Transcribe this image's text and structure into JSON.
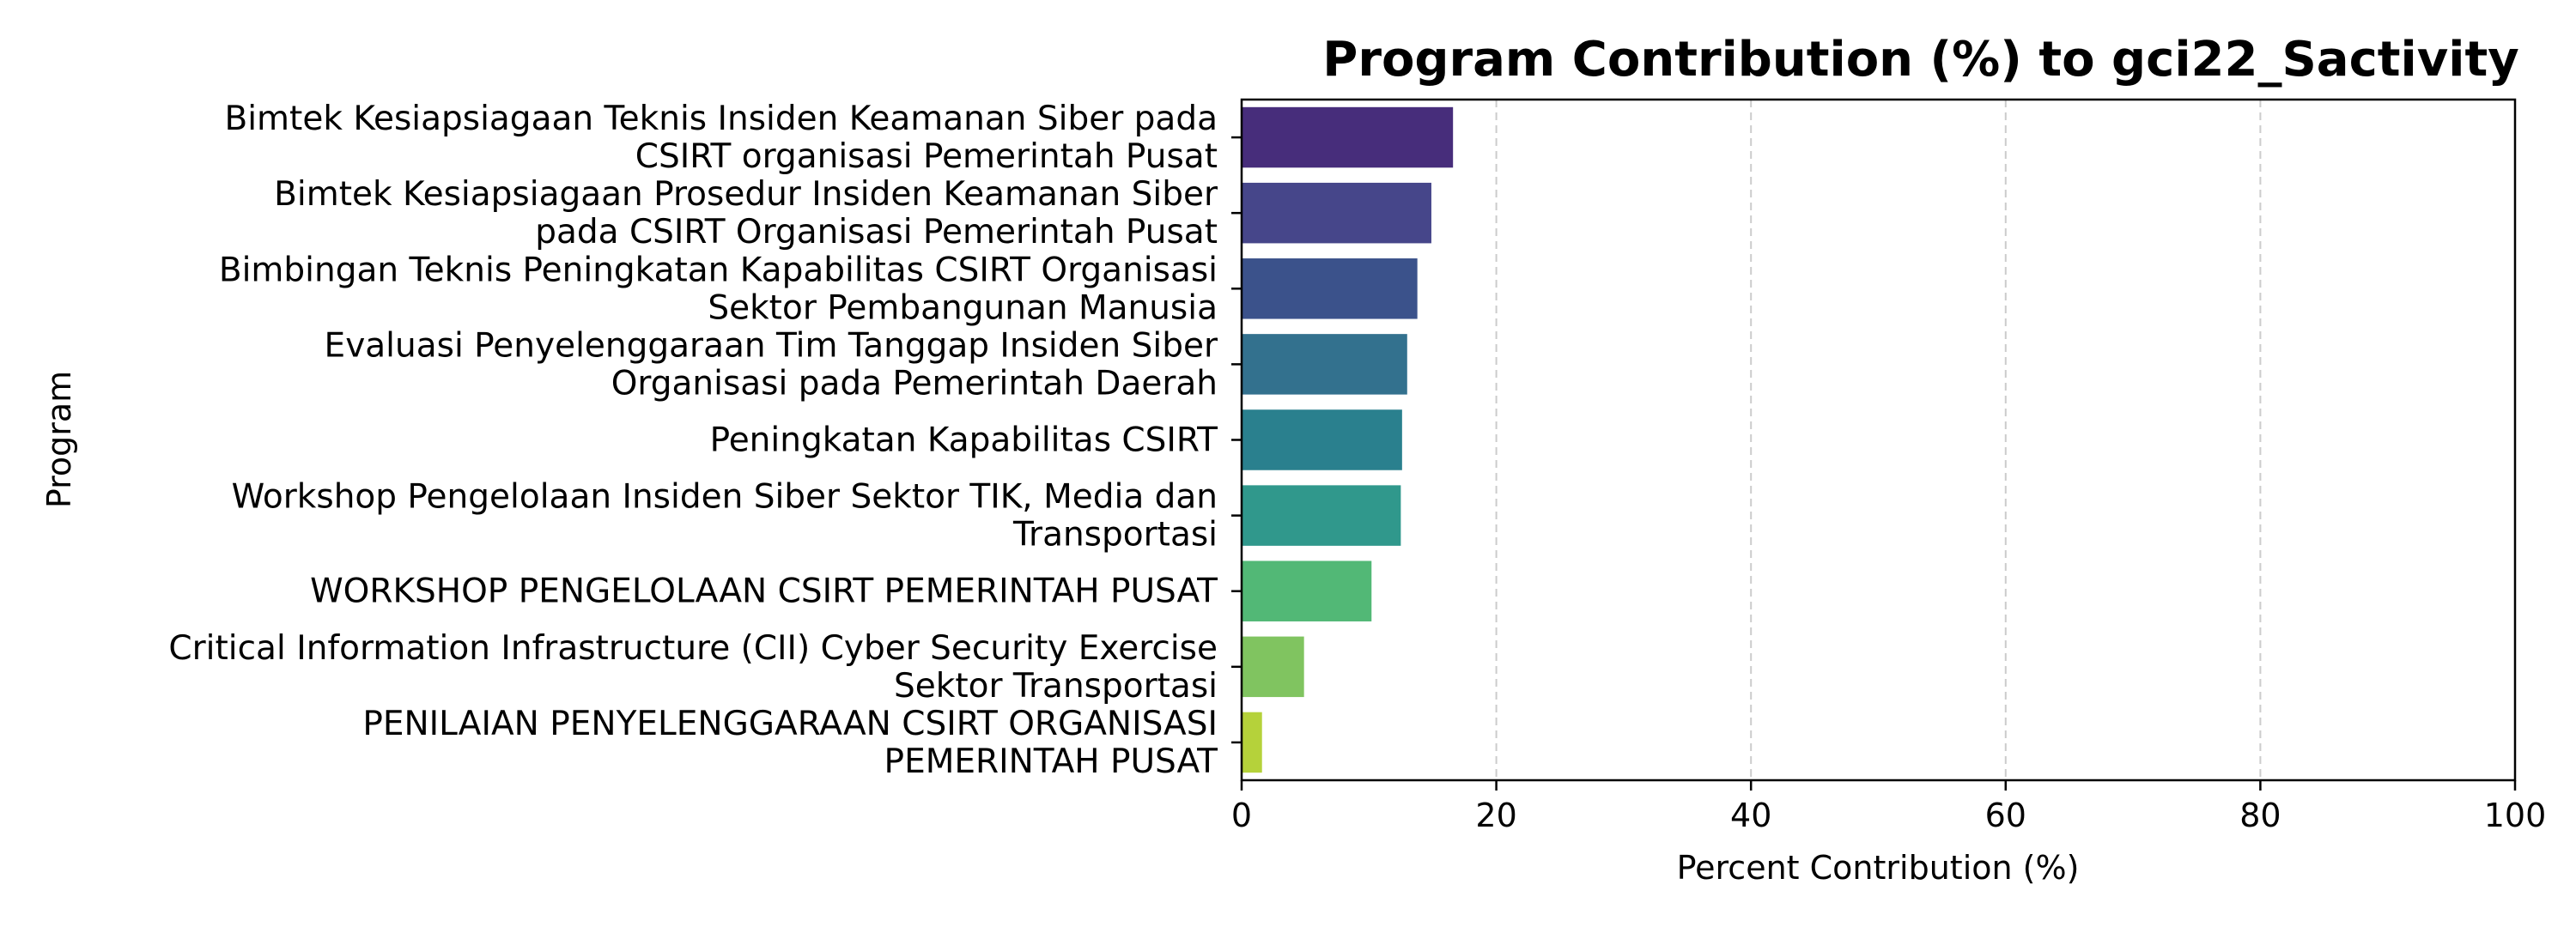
{
  "chart_data": {
    "type": "bar",
    "orientation": "horizontal",
    "title": "Program Contribution (%) to gci22_Sactivity",
    "xlabel": "Percent Contribution (%)",
    "ylabel": "Program",
    "xlim": [
      0,
      100
    ],
    "xticks": [
      0,
      20,
      40,
      60,
      80,
      100
    ],
    "grid": "x-dashed",
    "categories": [
      [
        "Bimtek Kesiapsiagaan Teknis Insiden Keamanan Siber pada",
        "CSIRT organisasi Pemerintah Pusat"
      ],
      [
        "Bimtek Kesiapsiagaan Prosedur Insiden Keamanan Siber",
        "pada CSIRT Organisasi Pemerintah Pusat"
      ],
      [
        "Bimbingan Teknis Peningkatan Kapabilitas CSIRT Organisasi",
        "Sektor Pembangunan Manusia"
      ],
      [
        "Evaluasi Penyelenggaraan Tim Tanggap Insiden Siber",
        "Organisasi pada Pemerintah Daerah"
      ],
      [
        "Peningkatan Kapabilitas CSIRT"
      ],
      [
        "Workshop Pengelolaan Insiden Siber Sektor TIK, Media dan",
        "Transportasi"
      ],
      [
        "WORKSHOP PENGELOLAAN CSIRT PEMERINTAH PUSAT"
      ],
      [
        "Critical Information Infrastructure (CII) Cyber Security Exercise",
        "Sektor Transportasi"
      ],
      [
        "PENILAIAN PENYELENGGARAAN CSIRT ORGANISASI",
        "PEMERINTAH PUSAT"
      ]
    ],
    "values": [
      16.6,
      14.9,
      13.8,
      13.0,
      12.6,
      12.5,
      10.2,
      4.9,
      1.6
    ],
    "colors": [
      "#472d7b",
      "#46468a",
      "#3b528b",
      "#33718e",
      "#2a808e",
      "#30988c",
      "#52b876",
      "#80c460",
      "#b5d23a"
    ]
  }
}
